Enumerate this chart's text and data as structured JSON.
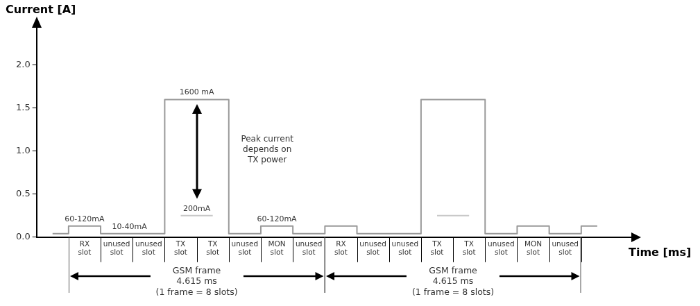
{
  "chart_data": {
    "type": "step",
    "xlabel": "Time [ms]",
    "ylabel": "Current [A]",
    "categories": [
      null,
      "RX slot",
      "unused slot",
      "unused slot",
      "TX slot",
      "TX slot",
      "unused slot",
      "MON slot",
      "unused slot",
      "RX slot",
      "unused slot",
      "unused slot",
      "TX slot",
      "TX slot",
      "unused slot",
      "MON slot",
      "unused slot",
      null
    ],
    "series": [
      {
        "color": "#999999",
        "values": [
          0.04,
          0.13,
          0.04,
          0.04,
          1.6,
          1.6,
          0.04,
          0.13,
          0.04,
          0.13,
          0.04,
          0.04,
          1.6,
          1.6,
          0.04,
          0.13,
          0.04,
          0.13
        ]
      },
      {
        "color": "#c8c8c8",
        "values": [
          null,
          null,
          null,
          null,
          0.25,
          0.25,
          null,
          null,
          null,
          null,
          null,
          null,
          0.25,
          0.25,
          null,
          null,
          null,
          null
        ]
      }
    ],
    "ylim": [
      0,
      2.45
    ],
    "yticks": [
      {
        "value": 0,
        "label": "0.0"
      },
      {
        "value": 0.5,
        "label": "0.5"
      },
      {
        "value": 1,
        "label": "1.0"
      },
      {
        "value": 1.5,
        "label": "1.5"
      },
      {
        "value": 2,
        "label": "2.0"
      }
    ],
    "annotations": [
      "60-120mA",
      "10-40mA",
      "1600 mA",
      "200mA",
      "Peak current depends on TX power",
      "60-120mA",
      "GSM frame\n4.615 ms\n(1 frame = 8 slots)",
      "GSM frame\n4.615 ms\n(1 frame = 8 slots)"
    ],
    "grid": false,
    "legend": false,
    "marker": "none",
    "line_style": "solid"
  }
}
